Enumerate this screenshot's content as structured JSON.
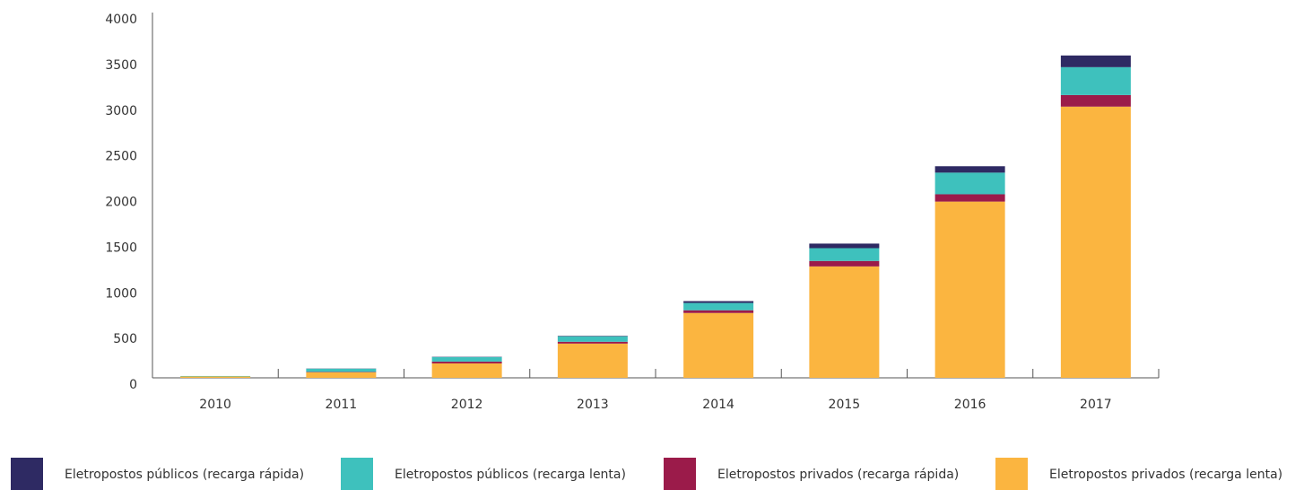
{
  "chart_data": {
    "type": "stacked_bar",
    "categories": [
      "2010",
      "2011",
      "2012",
      "2013",
      "2014",
      "2015",
      "2016",
      "2017"
    ],
    "series": [
      {
        "name": "Eletropostos públicos (recarga rápida)",
        "color": "#2e2a63",
        "values": [
          0,
          2,
          3,
          5,
          20,
          50,
          70,
          128
        ]
      },
      {
        "name": "Eletropostos públicos (recarga lenta)",
        "color": "#3ec1bd",
        "values": [
          5,
          35,
          50,
          60,
          80,
          140,
          237,
          305
        ]
      },
      {
        "name": "Eletropostos privados (recarga rápida)",
        "color": "#9b1b4a",
        "values": [
          0,
          5,
          20,
          20,
          30,
          60,
          80,
          127
        ]
      },
      {
        "name": "Eletropostos privados (recarga lenta)",
        "color": "#fbb540",
        "values": [
          15,
          60,
          158,
          375,
          710,
          1220,
          1930,
          2970
        ]
      }
    ],
    "ylim": [
      0,
      4000
    ],
    "yticks": [
      0,
      500,
      1000,
      1500,
      2000,
      2500,
      3000,
      3500,
      4000
    ],
    "grid": false,
    "legend": "bottom"
  }
}
